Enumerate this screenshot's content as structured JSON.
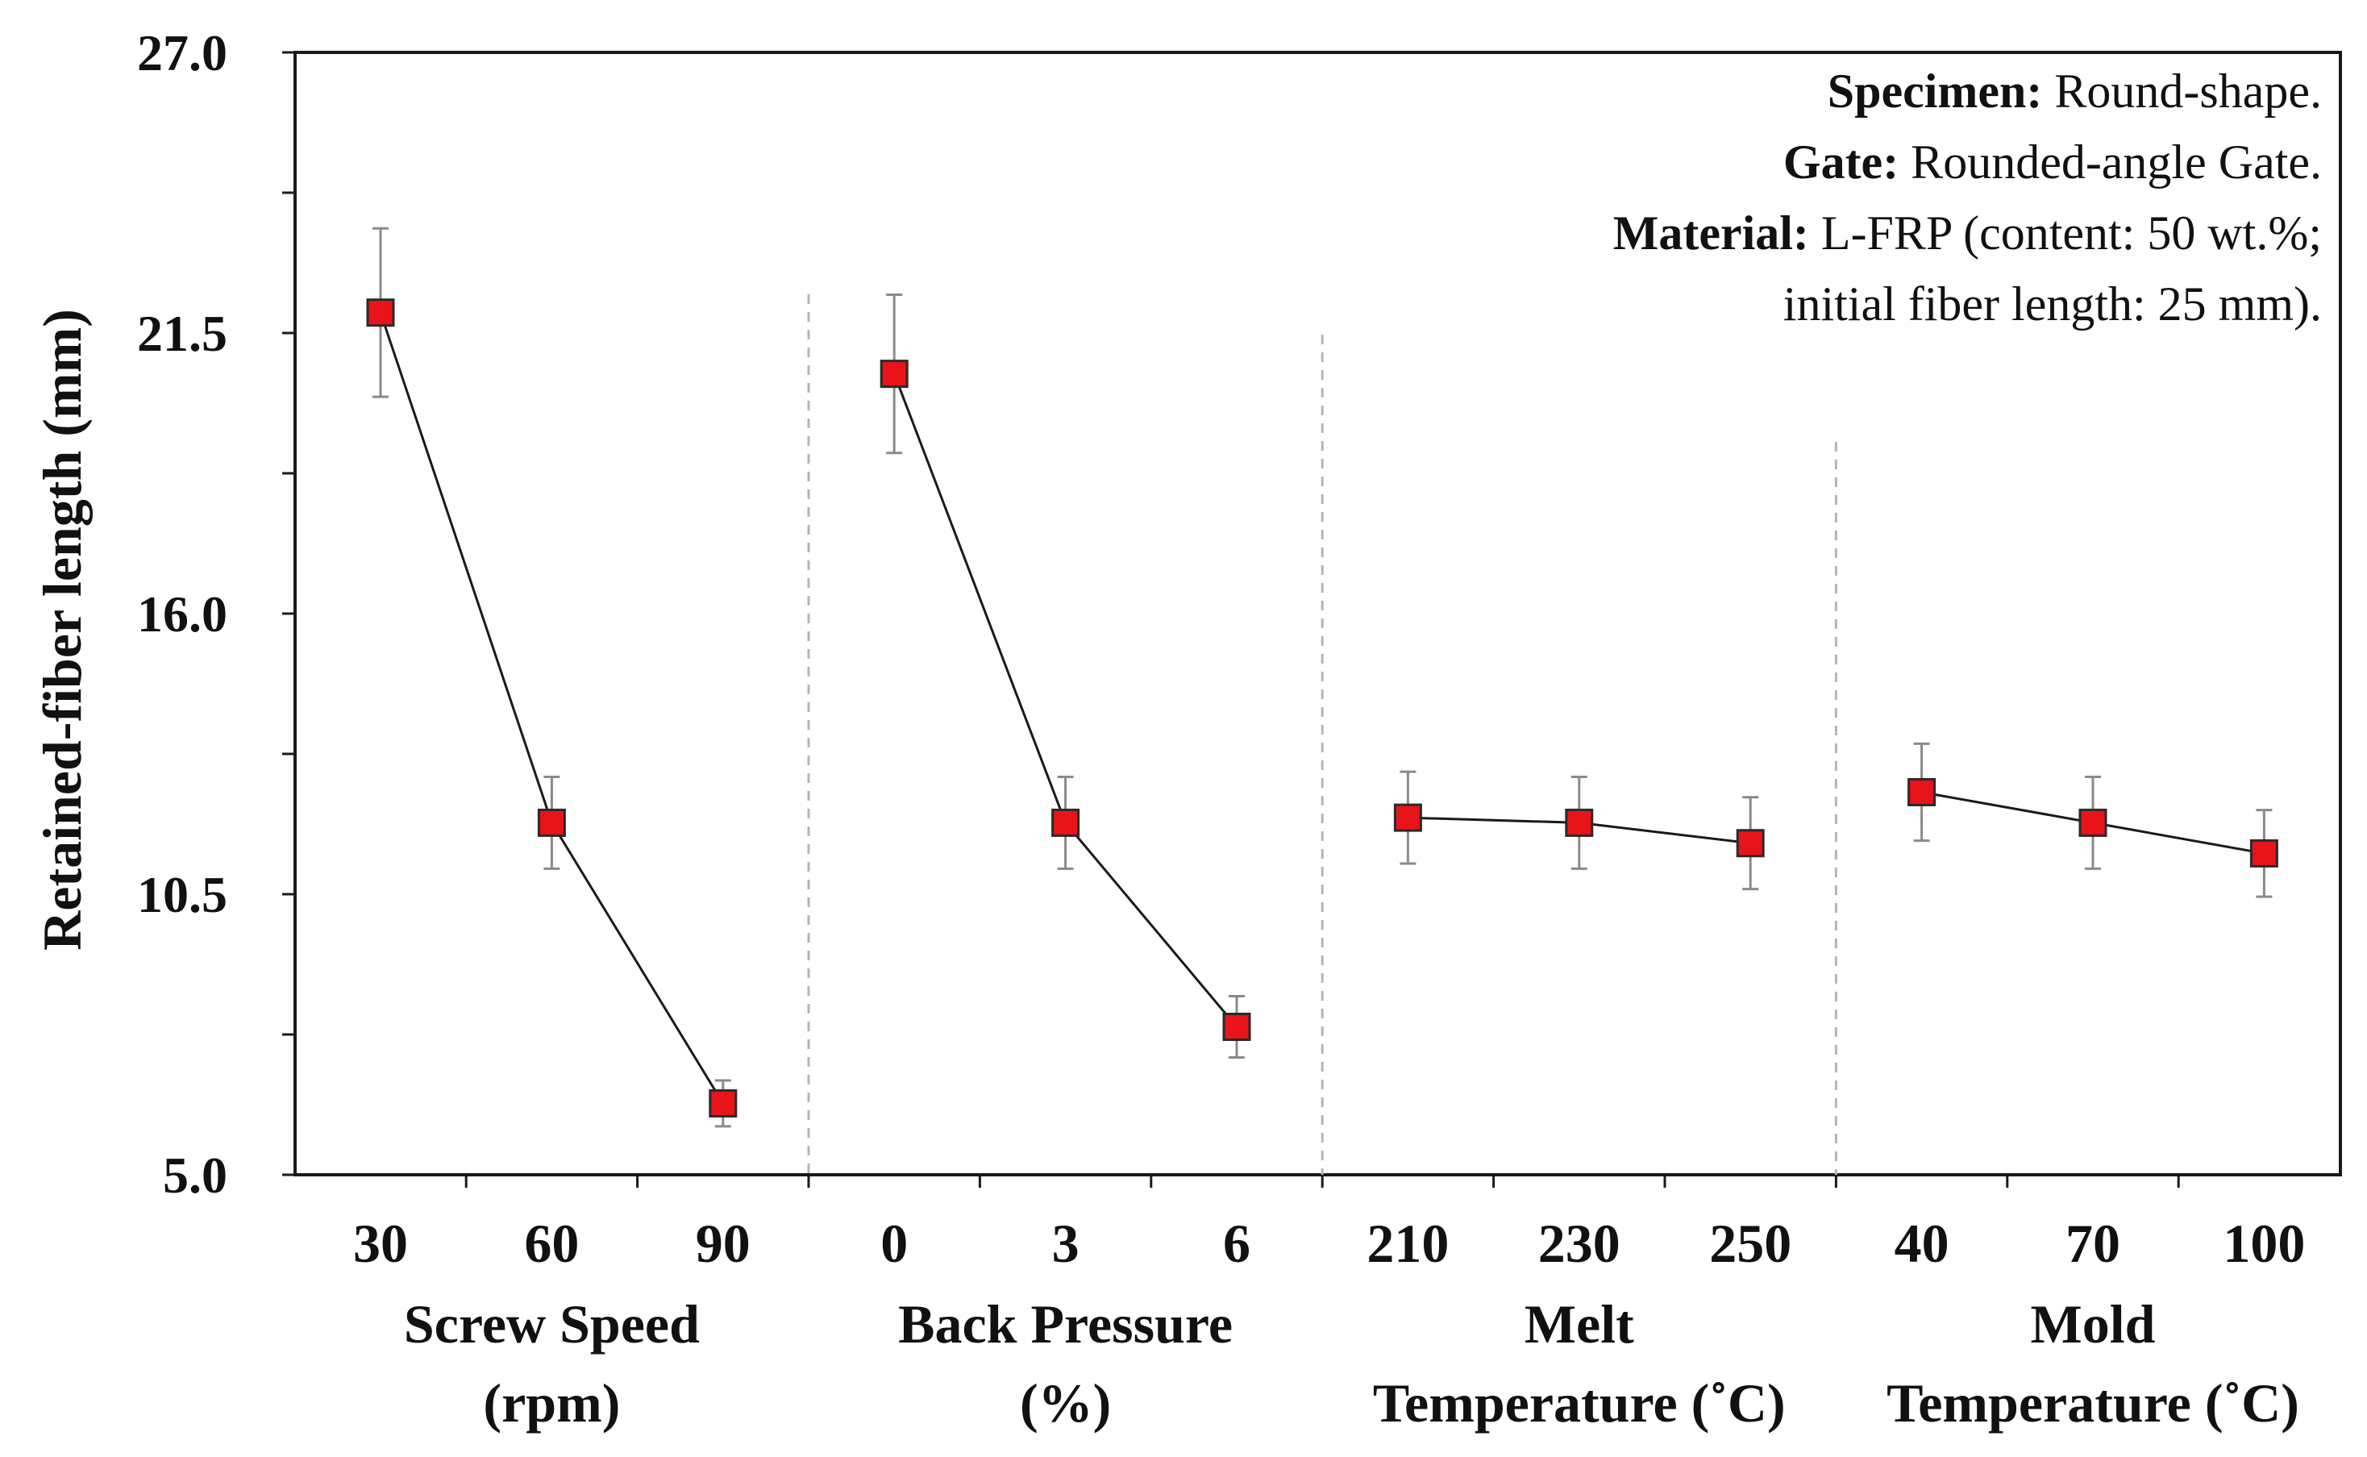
{
  "chart_data": {
    "type": "line",
    "title": "",
    "ylabel": "Retained-fiber length (mm)",
    "ylim": [
      5.0,
      27.0
    ],
    "yticks": [
      "5.0",
      "10.5",
      "16.0",
      "21.5",
      "27.0"
    ],
    "ytick_values": [
      5.0,
      10.5,
      16.0,
      21.5,
      27.0
    ],
    "grid": false,
    "marker_color": "#e8141a",
    "groups": [
      {
        "name": "Screw Speed",
        "label_lines": [
          "Screw Speed",
          "(rpm)"
        ],
        "categories": [
          "30",
          "60",
          "90"
        ],
        "values": [
          21.9,
          11.9,
          6.4
        ],
        "errors": [
          1.65,
          0.9,
          0.45
        ]
      },
      {
        "name": "Back Pressure",
        "label_lines": [
          "Back Pressure",
          "(%)"
        ],
        "categories": [
          "0",
          "3",
          "6"
        ],
        "values": [
          20.7,
          11.9,
          7.9
        ],
        "errors": [
          1.55,
          0.9,
          0.6
        ]
      },
      {
        "name": "Melt Temperature",
        "label_lines": [
          "Melt",
          "Temperature (˚C)"
        ],
        "categories": [
          "210",
          "230",
          "250"
        ],
        "values": [
          12.0,
          11.9,
          11.5
        ],
        "errors": [
          0.9,
          0.9,
          0.9
        ]
      },
      {
        "name": "Mold Temperature",
        "label_lines": [
          "Mold",
          "Temperature (˚C)"
        ],
        "categories": [
          "40",
          "70",
          "100"
        ],
        "values": [
          12.5,
          11.9,
          11.3
        ],
        "errors": [
          0.95,
          0.9,
          0.85
        ]
      }
    ],
    "annotations": [
      {
        "key": "Specimen:",
        "text": " Round-shape."
      },
      {
        "key": "Gate:",
        "text": " Rounded-angle Gate."
      },
      {
        "key": "Material:",
        "text": " L-FRP (content: 50 wt.%;"
      },
      {
        "key": "",
        "text": "initial fiber length: 25 mm)."
      }
    ],
    "legend": "none"
  }
}
